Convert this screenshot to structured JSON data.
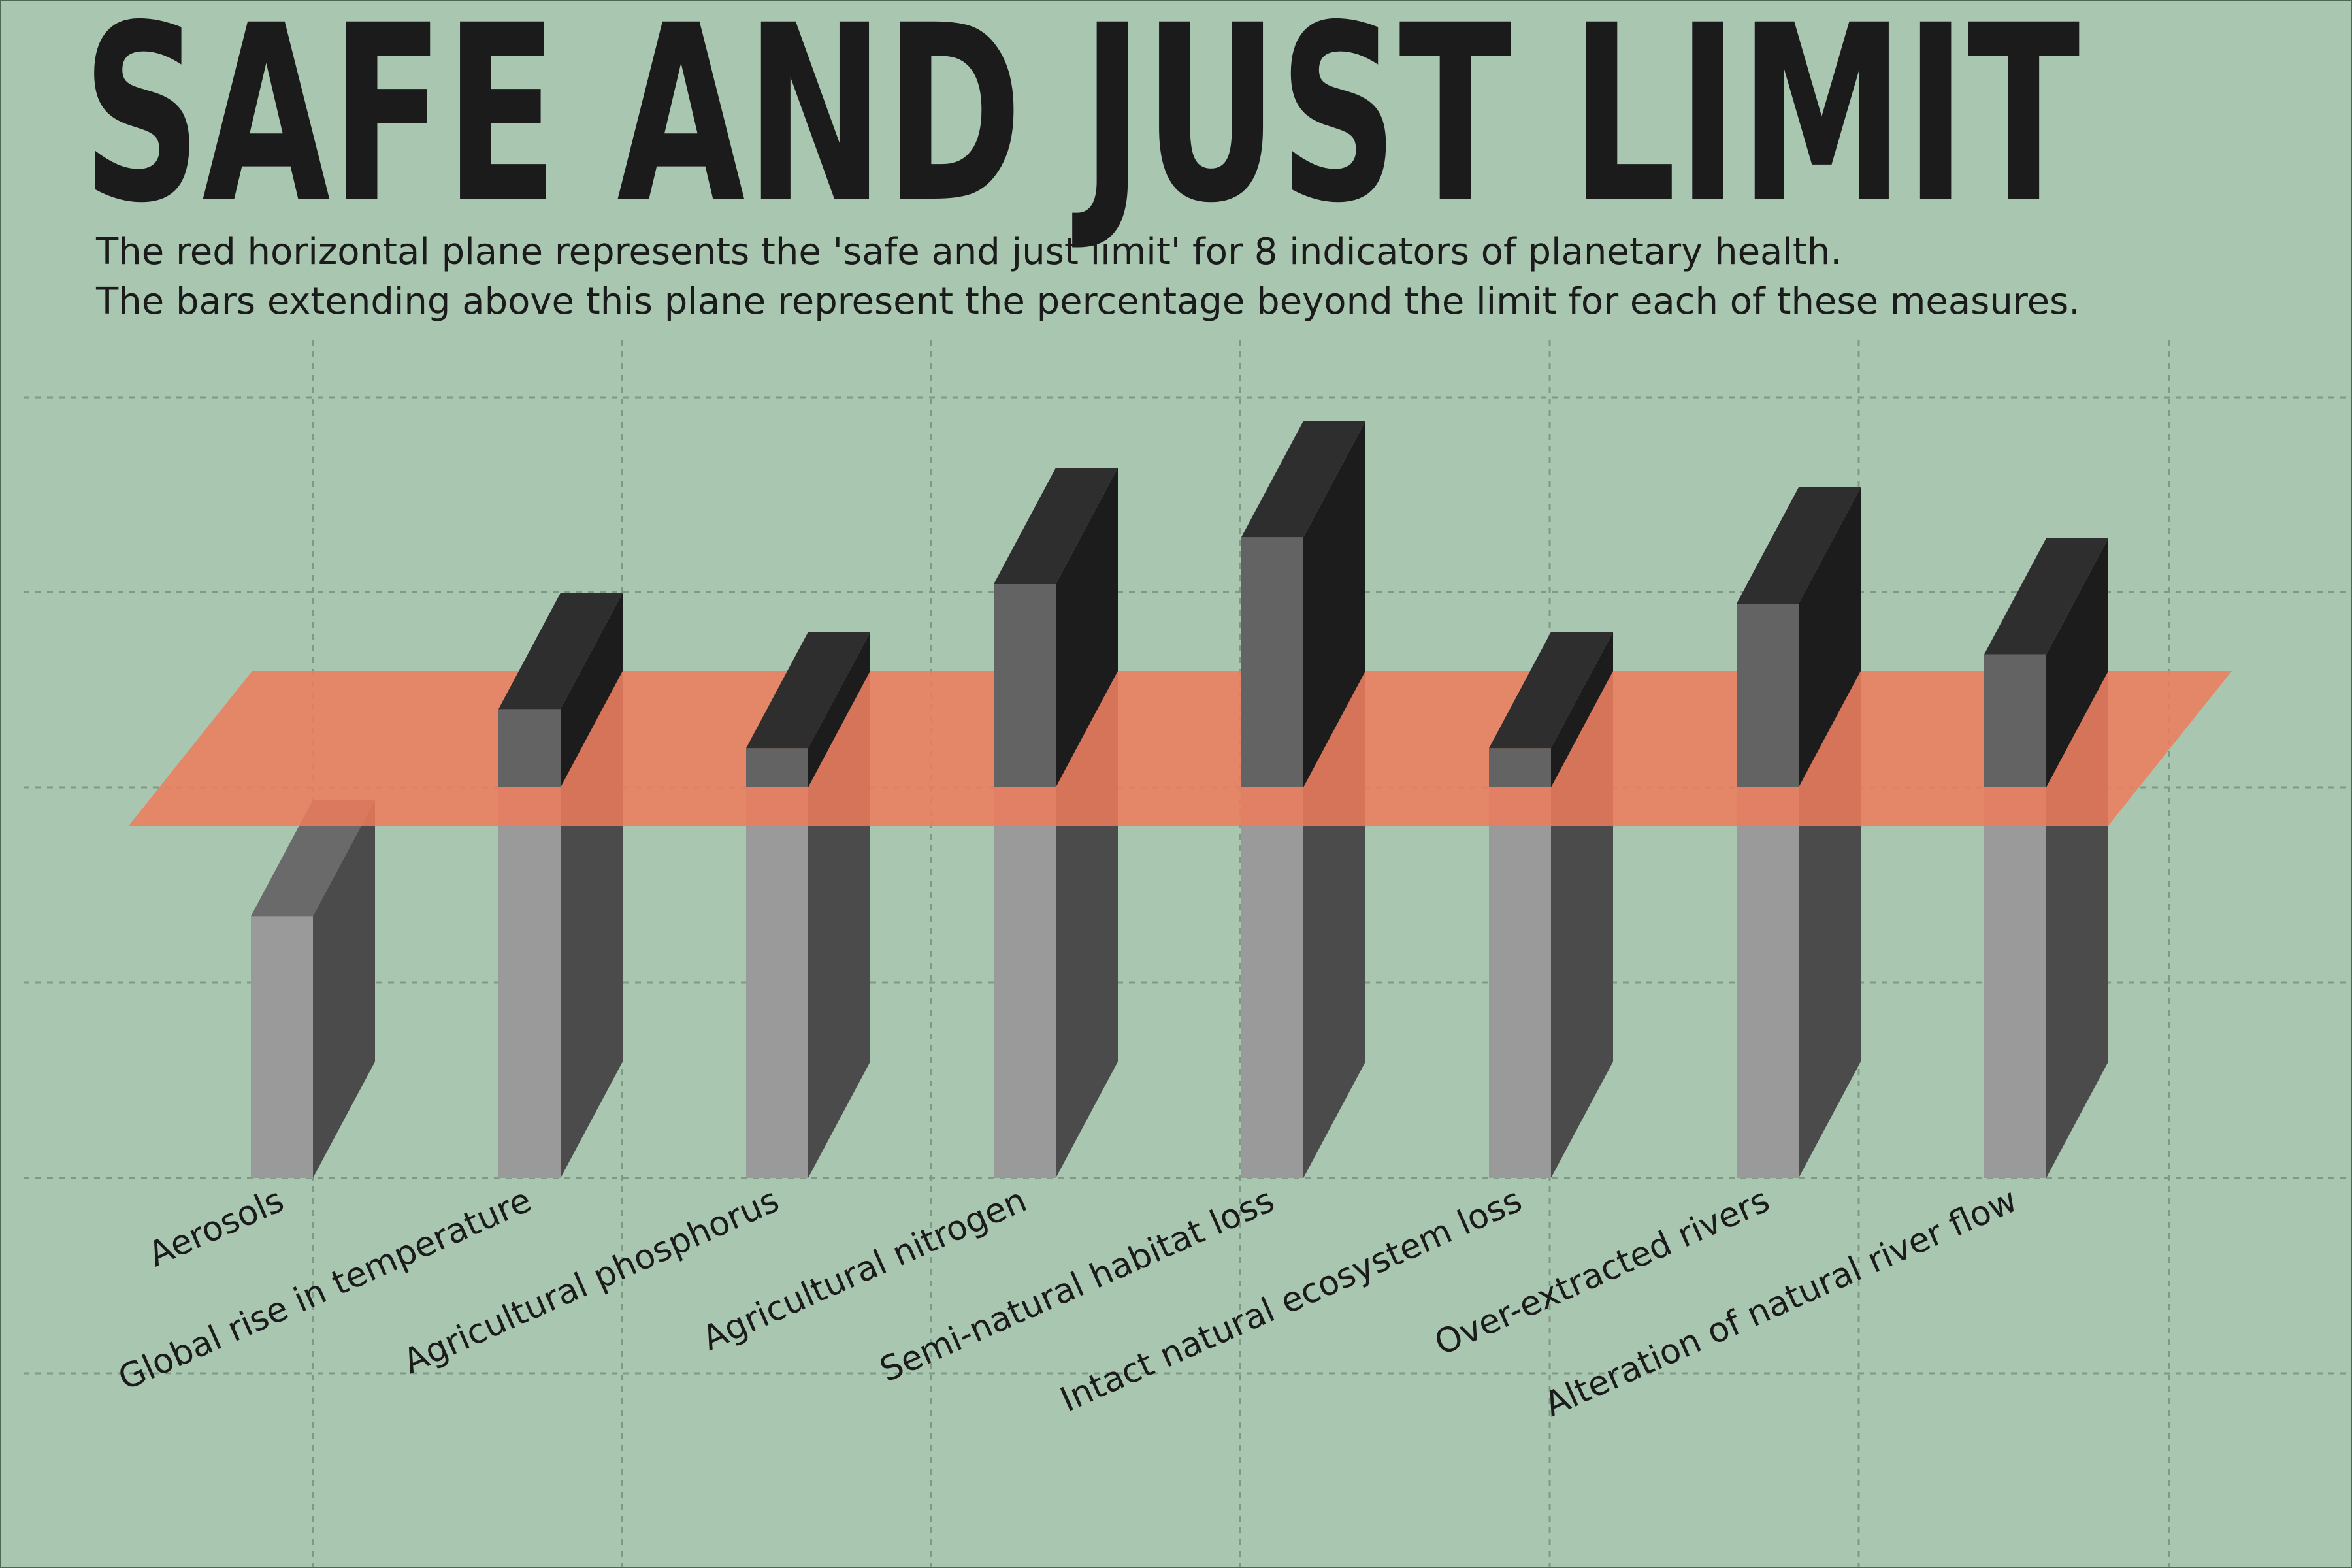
{
  "title": "SAFE AND JUST LIMIT",
  "subtitle_lines": [
    "The red horizontal plane represents the 'safe and just limit' for 8 indicators of planetary health.",
    "The bars extending above this plane represent the percentage beyond the limit for each of these measures."
  ],
  "colors": {
    "background": "#a9c6b0",
    "limit_plane": "#ee7b5c",
    "bar_below_front": "#9a9a9a",
    "bar_below_side": "#4b4b4b",
    "bar_above_front": "#636363",
    "bar_above_side": "#1c1c1c",
    "bar_top": "#2e2e2e",
    "text": "#1b1b1b"
  },
  "chart_data": {
    "type": "bar",
    "style": "3d-bars-with-horizontal-limit-plane",
    "limit": 100,
    "categories": [
      "Aerosols",
      "Global rise in temperature",
      "Agricultural phosphorus",
      "Agricultural nitrogen",
      "Semi-natural habitat loss",
      "Intact natural ecosystem loss",
      "Over-extracted rivers",
      "Alteration of natural river flow"
    ],
    "values": [
      67,
      120,
      110,
      152,
      164,
      110,
      147,
      134
    ],
    "ylim": [
      0,
      200
    ],
    "grid": true
  }
}
